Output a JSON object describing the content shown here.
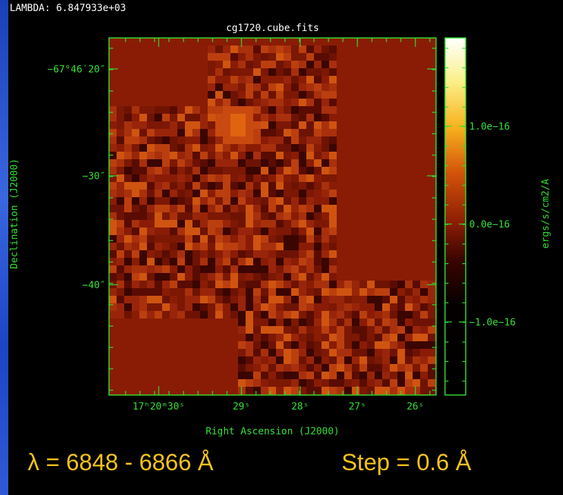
{
  "header": {
    "lambda": "LAMBDA: 6.847933e+03"
  },
  "plot": {
    "title": "cg1720.cube.fits",
    "y_tick_labels": [
      "−67°46′20″",
      "−30″",
      "−40″"
    ],
    "x_tick_labels": [
      "17ʰ20ᵐ30ˢ",
      "29ˢ",
      "28ˢ",
      "27ˢ",
      "26ˢ"
    ],
    "x_axis_title": "Right Ascension (J2000)",
    "y_axis_title": "Declination (J2000)"
  },
  "colorbar": {
    "title": "ergs/s/cm2/A",
    "tick_labels": [
      "1.0e−16",
      "0.0e−16",
      "−1.0e−16"
    ]
  },
  "footer": {
    "range": "λ = 6848 - 6866 Å",
    "step": "Step = 0.6 Å"
  }
}
